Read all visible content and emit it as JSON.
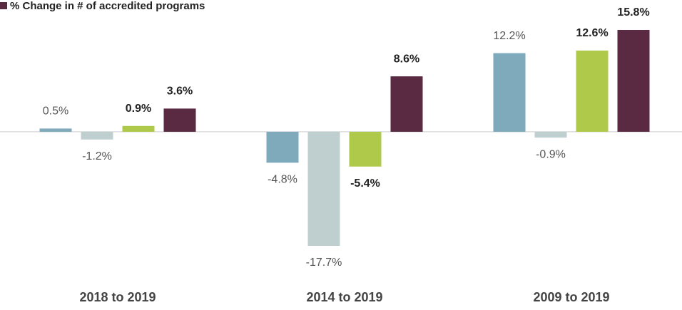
{
  "chart_data": {
    "type": "bar",
    "categories": [
      "2018 to 2019",
      "2014 to 2019",
      "2009 to 2019"
    ],
    "series": [
      {
        "color": "#7eaabb",
        "values": [
          0.5,
          -4.8,
          12.2
        ],
        "value_labels": [
          "0.5%",
          "-4.8%",
          "12.2%"
        ],
        "bold_labels": false
      },
      {
        "color": "#bfcfd0",
        "values": [
          -1.2,
          -17.7,
          -0.9
        ],
        "value_labels": [
          "-1.2%",
          "-17.7%",
          "-0.9%"
        ],
        "bold_labels": false
      },
      {
        "color": "#afca4a",
        "values": [
          0.9,
          -5.4,
          12.6
        ],
        "value_labels": [
          "0.9%",
          "-5.4%",
          "12.6%"
        ],
        "bold_labels": true
      },
      {
        "name": "% Change in # of accredited programs",
        "color": "#5a2a43",
        "values": [
          3.6,
          8.6,
          15.8
        ],
        "value_labels": [
          "3.6%",
          "8.6%",
          "15.8%"
        ],
        "bold_labels": true
      }
    ],
    "legend": "top-left"
  }
}
